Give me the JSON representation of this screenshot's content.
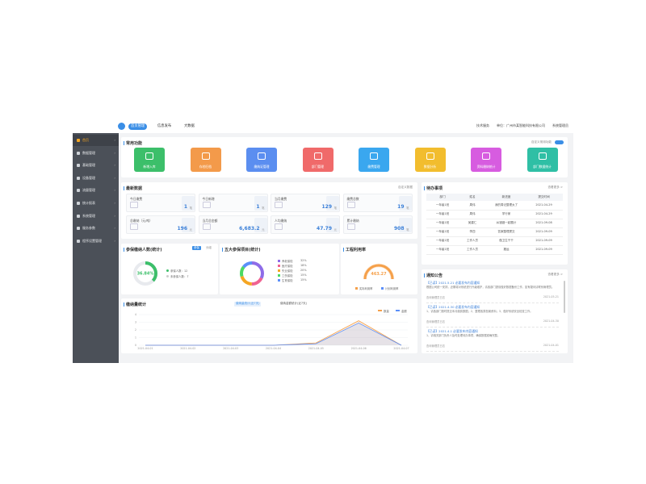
{
  "top_tabs": [
    "首页管理",
    "信息发布",
    "大数据"
  ],
  "top_right": [
    "技术服务",
    "单位：广州市某智能科技有限公司",
    "系统管理员"
  ],
  "sidebar": [
    "首页",
    "数据管理",
    "基础管理",
    "设备管理",
    "流量管理",
    "统计报表",
    "系统管理",
    "服务参数",
    "程序设置管理"
  ],
  "shortcuts": {
    "title": "常用功能",
    "toggle_label": "自定义常用功能",
    "items": [
      {
        "label": "新增入库",
        "color": "#3cbf6a"
      },
      {
        "label": "存档归档",
        "color": "#f39a4a"
      },
      {
        "label": "缴纳证管理",
        "color": "#5b8ef0"
      },
      {
        "label": "部门管理",
        "color": "#f06a6a"
      },
      {
        "label": "缴费管理",
        "color": "#3aa7ef"
      },
      {
        "label": "数据分析",
        "color": "#f2bd2e"
      },
      {
        "label": "资料缴纳统计",
        "color": "#d75ce0"
      },
      {
        "label": "部门数据统计",
        "color": "#2fbfa5"
      }
    ]
  },
  "latest": {
    "title": "最新数据",
    "action": "自定义数据",
    "items": [
      {
        "label": "今日缴费",
        "value": "1",
        "unit": "笔"
      },
      {
        "label": "今日新增",
        "value": "1",
        "unit": "笔"
      },
      {
        "label": "当月缴费",
        "value": "129",
        "unit": "笔"
      },
      {
        "label": "缴费总数",
        "value": "19",
        "unit": "笔"
      },
      {
        "label": "总缴纳（元/吨）",
        "value": "196",
        "unit": "元"
      },
      {
        "label": "当月总金额",
        "value": "6,683.2",
        "unit": "元"
      },
      {
        "label": "人均缴纳",
        "value": "47.79",
        "unit": "元"
      },
      {
        "label": "累计缴纳",
        "value": "908",
        "unit": "笔"
      }
    ]
  },
  "todo": {
    "title": "待办事项",
    "action": "查看更多 >",
    "columns": [
      "部门",
      "姓名",
      "新进度",
      "提交时间"
    ],
    "rows": [
      [
        "一年级1班",
        "周伟",
        "我的周记整理太了",
        "2021-04-29"
      ],
      [
        "一年级1班",
        "周伟",
        "学行家",
        "2021-04-29"
      ],
      [
        "一年级1班",
        "吴建仁",
        "纠错错一起题计",
        "2021-09-08"
      ],
      [
        "一年级1班",
        "李四",
        "答案整理提交",
        "2021-09-09"
      ],
      [
        "一年级1班",
        "工作人员",
        "做卫生干干",
        "2021-09-09"
      ],
      [
        "一年级1班",
        "工作人员",
        "搬运",
        "2021-09-09"
      ]
    ]
  },
  "gauge_people": {
    "title": "参保缴纳人数(统计)",
    "tabs": [
      "参保",
      "分组"
    ],
    "value": 36.84,
    "value_label": "36.84%",
    "color": "#3cbf6a",
    "legend": [
      "参保人数：12",
      "未参保人数：7"
    ]
  },
  "gauge_items": {
    "title": "五大参保项目(统计)",
    "segments": [
      {
        "name": "养老保险",
        "value": 32,
        "value_label": "32%",
        "color": "#8e6ce8"
      },
      {
        "name": "医疗保险",
        "value": 18,
        "value_label": "18%",
        "color": "#f06292"
      },
      {
        "name": "失业保险",
        "value": 20,
        "value_label": "20%",
        "color": "#f5a623"
      },
      {
        "name": "工伤保险",
        "value": 15,
        "value_label": "15%",
        "color": "#4cd964"
      },
      {
        "name": "生育保险",
        "value": 15,
        "value_label": "15%",
        "color": "#5b8ff9"
      }
    ]
  },
  "gauge_rate": {
    "title": "工程利用率",
    "value_label": "463.27",
    "color": "#f5a04a",
    "legend": [
      "实际利用率",
      "计划利用率"
    ]
  },
  "chart_data": {
    "type": "line",
    "title": "缴纳量统计",
    "buttons": [
      "缴纳量统计(近7天)",
      "缴纳金额统计(近7天)"
    ],
    "categories": [
      "2021-04-01",
      "2021-04-02",
      "2021-04-03",
      "2021-04-04",
      "2021-04-05",
      "2021-04-06",
      "2021-04-07"
    ],
    "series": [
      {
        "name": "数量",
        "color": "#f5a04a",
        "values": [
          0,
          0,
          0,
          0,
          0.3,
          3.2,
          0
        ]
      },
      {
        "name": "金额",
        "color": "#5b8ff9",
        "values": [
          0,
          0,
          0,
          0,
          0.2,
          2.9,
          0
        ]
      }
    ],
    "ylim": [
      0,
      4
    ],
    "yticks": [
      0,
      1,
      2,
      3,
      4
    ],
    "grid": true
  },
  "notices": {
    "title": "通知公告",
    "action": "查看更多 >",
    "items": [
      {
        "title": "【已读】2021.5.21 必要发布内容通知",
        "body": "根据公司统一安排，近期将对系统进行升级维护，请各部门提前做好数据备份工作，如有疑问请联系管理员。",
        "author": "查询管理员日志",
        "date": "2021-05-21"
      },
      {
        "title": "【已读】2021.4.30 必要发布内容通知",
        "body": "1、请各部门按时提交本月缴费数据；2、整理各类档案资料；3、做好系统安全检查工作。",
        "author": "查询管理员日志",
        "date": "2021-04-30"
      },
      {
        "title": "【已读】2021.4.1 必要发布内容通知",
        "body": "1、请相关部门负责人及时处理待办事项，确保数据准确完整。",
        "author": "查询管理员日志",
        "date": "2021-04-01"
      }
    ]
  }
}
